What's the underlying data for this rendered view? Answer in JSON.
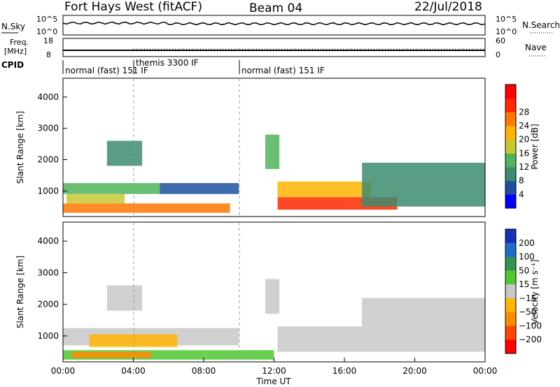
{
  "header": {
    "title": "Fort Hays West (fitACF)",
    "beam": "Beam 04",
    "date": "22/Jul/2018"
  },
  "noise_panel": {
    "left_label": "N.Sky",
    "left_ticks": [
      "10^5",
      "10^0"
    ],
    "right_ticks": [
      "10^5",
      "10^0"
    ],
    "right_label": "N.Search"
  },
  "freq_panel": {
    "label_top": "Freq.",
    "label_unit": "[MHz]",
    "left_ticks": [
      "18",
      "8"
    ],
    "right_ticks": [
      "60",
      "0"
    ],
    "right_label": "Nave"
  },
  "cpid": {
    "label": "CPID",
    "segments": [
      {
        "text": "normal (fast) 151 IF",
        "start_hour": 0.0
      },
      {
        "text": "themis 3300 IF",
        "start_hour": 4.0
      },
      {
        "text": "normal (fast) 151 IF",
        "start_hour": 10.0
      }
    ]
  },
  "axes": {
    "ylabel": "Slant Range [km]",
    "y_ticks": [
      "1000",
      "2000",
      "3000",
      "4000"
    ],
    "x_ticks": [
      "00:00",
      "04:00",
      "08:00",
      "12:00",
      "16:00",
      "20:00",
      "00:00"
    ],
    "xlabel": "Time UT"
  },
  "power_colorbar": {
    "label": "Power [dB]",
    "ticks": [
      "4",
      "8",
      "12",
      "16",
      "20",
      "24",
      "28"
    ],
    "colors": [
      "#0000ff",
      "#1e50a0",
      "#3c8c6e",
      "#50b45a",
      "#c8c832",
      "#ffb400",
      "#ff7800",
      "#ff2800",
      "#ff0000"
    ]
  },
  "velocity_colorbar": {
    "label": "Velocity [m s⁻¹]",
    "ticks": [
      "200",
      "100",
      "50",
      "15",
      "−15",
      "−50",
      "−100",
      "−200"
    ],
    "colors": [
      "#1432b4",
      "#1e6ec8",
      "#329650",
      "#50c832",
      "#c8c8c8",
      "#ffb400",
      "#ff8c00",
      "#ff4600",
      "#ff0000"
    ]
  },
  "chart_data": {
    "type": "heatmap",
    "x_range_hours": [
      0,
      24
    ],
    "y_range_km": [
      180,
      4600
    ],
    "time_markers_hours": [
      4.0,
      10.0
    ],
    "power_regions": [
      {
        "t0": 0.0,
        "t1": 5.5,
        "r0": 900,
        "r1": 1250,
        "color": "#50b45a"
      },
      {
        "t0": 0.0,
        "t1": 9.5,
        "r0": 300,
        "r1": 600,
        "color": "#ff7800"
      },
      {
        "t0": 0.2,
        "t1": 3.5,
        "r0": 600,
        "r1": 900,
        "color": "#c8c832"
      },
      {
        "t0": 5.5,
        "t1": 10.0,
        "r0": 900,
        "r1": 1250,
        "color": "#1e50a0"
      },
      {
        "t0": 2.5,
        "t1": 4.5,
        "r0": 1800,
        "r1": 2600,
        "color": "#3c8c6e"
      },
      {
        "t0": 12.2,
        "t1": 19.0,
        "r0": 400,
        "r1": 800,
        "color": "#ff2800"
      },
      {
        "t0": 12.2,
        "t1": 17.5,
        "r0": 800,
        "r1": 1300,
        "color": "#ffb400"
      },
      {
        "t0": 11.5,
        "t1": 12.3,
        "r0": 1700,
        "r1": 2800,
        "color": "#50b45a"
      },
      {
        "t0": 17.0,
        "t1": 24.0,
        "r0": 500,
        "r1": 1900,
        "color": "#3c8c6e"
      }
    ],
    "velocity_regions": [
      {
        "t0": 0.0,
        "t1": 10.0,
        "r0": 700,
        "r1": 1250,
        "color": "#c8c8c8"
      },
      {
        "t0": 1.5,
        "t1": 6.5,
        "r0": 650,
        "r1": 1050,
        "color": "#ffb400"
      },
      {
        "t0": 0.0,
        "t1": 12.0,
        "r0": 250,
        "r1": 550,
        "color": "#50c832"
      },
      {
        "t0": 0.5,
        "t1": 5.0,
        "r0": 300,
        "r1": 500,
        "color": "#ff8c00"
      },
      {
        "t0": 2.5,
        "t1": 4.5,
        "r0": 1800,
        "r1": 2600,
        "color": "#c8c8c8"
      },
      {
        "t0": 12.2,
        "t1": 24.0,
        "r0": 500,
        "r1": 1300,
        "color": "#c8c8c8"
      },
      {
        "t0": 11.5,
        "t1": 12.3,
        "r0": 1700,
        "r1": 2800,
        "color": "#c8c8c8"
      },
      {
        "t0": 17.0,
        "t1": 24.0,
        "r0": 1300,
        "r1": 2200,
        "color": "#c8c8c8"
      }
    ]
  }
}
